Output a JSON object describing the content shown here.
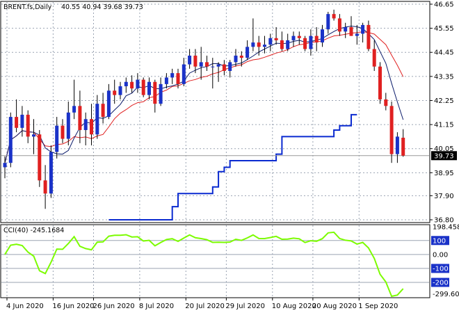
{
  "header": {
    "symbol_label": "BRENT.fs,Daily",
    "ohlc_label": "40.55 40.94 39.68 39.73",
    "cci_label": "CCI(40) -245.1684"
  },
  "chart_data": [
    {
      "type": "candlestick",
      "title": "BRENT.fs,Daily",
      "x_tick_labels": [
        "4 Jun 2020",
        "16 Jun 2020",
        "26 Jun 2020",
        "8 Jul 2020",
        "20 Jul 2020",
        "29 Jul 2020",
        "10 Aug 2020",
        "20 Aug 2020",
        "1 Sep 2020"
      ],
      "x_tick_indices": [
        0,
        8,
        15,
        23,
        31,
        38,
        46,
        53,
        61
      ],
      "y_ticks": [
        "46.65",
        "45.55",
        "44.45",
        "43.35",
        "42.25",
        "41.15",
        "40.05",
        "38.95",
        "37.90",
        "36.80"
      ],
      "ylim": [
        36.8,
        46.65
      ],
      "last_price_label": "39.73",
      "last_price": 39.73,
      "colors": {
        "up": "#1a32c8",
        "down": "#e02020",
        "wick": "#000000",
        "price_line": "#999999"
      },
      "candles": [
        [
          39.2,
          39.7,
          38.7,
          39.4
        ],
        [
          39.4,
          41.7,
          39.2,
          41.5
        ],
        [
          41.5,
          42.3,
          40.8,
          41.0
        ],
        [
          41.0,
          42.0,
          40.6,
          41.6
        ],
        [
          41.6,
          41.8,
          40.3,
          40.6
        ],
        [
          40.6,
          41.4,
          39.8,
          40.7
        ],
        [
          40.7,
          40.9,
          38.3,
          38.6
        ],
        [
          38.6,
          39.3,
          37.3,
          38.0
        ],
        [
          38.0,
          40.2,
          37.8,
          39.9
        ],
        [
          39.9,
          41.5,
          39.6,
          41.1
        ],
        [
          41.1,
          41.4,
          40.3,
          40.5
        ],
        [
          40.5,
          42.2,
          40.2,
          41.7
        ],
        [
          41.7,
          43.2,
          41.4,
          42.0
        ],
        [
          42.0,
          42.7,
          40.3,
          40.9
        ],
        [
          40.9,
          41.7,
          40.2,
          41.4
        ],
        [
          41.4,
          42.1,
          40.2,
          40.7
        ],
        [
          40.7,
          42.5,
          40.5,
          42.1
        ],
        [
          42.1,
          42.6,
          41.2,
          41.5
        ],
        [
          41.5,
          43.0,
          41.4,
          42.7
        ],
        [
          42.7,
          43.2,
          42.1,
          42.5
        ],
        [
          42.5,
          43.1,
          42.3,
          42.9
        ],
        [
          42.9,
          43.3,
          42.6,
          43.1
        ],
        [
          43.1,
          43.4,
          42.6,
          42.8
        ],
        [
          42.8,
          43.5,
          42.6,
          43.2
        ],
        [
          43.2,
          43.3,
          42.4,
          42.5
        ],
        [
          42.5,
          43.3,
          42.3,
          43.1
        ],
        [
          43.1,
          43.2,
          41.7,
          42.1
        ],
        [
          42.1,
          43.3,
          42.0,
          43.0
        ],
        [
          43.0,
          43.5,
          42.8,
          43.3
        ],
        [
          43.3,
          43.7,
          43.0,
          43.5
        ],
        [
          43.5,
          43.7,
          42.8,
          43.0
        ],
        [
          43.0,
          44.2,
          42.9,
          43.9
        ],
        [
          43.9,
          44.6,
          43.7,
          44.3
        ],
        [
          44.3,
          44.6,
          43.5,
          43.8
        ],
        [
          43.8,
          44.7,
          43.2,
          44.0
        ],
        [
          44.0,
          44.3,
          43.6,
          43.8
        ],
        [
          43.8,
          44.2,
          42.8,
          43.8
        ],
        [
          43.8,
          44.0,
          43.1,
          43.9
        ],
        [
          43.9,
          44.1,
          43.4,
          43.6
        ],
        [
          43.6,
          44.1,
          43.3,
          44.0
        ],
        [
          44.0,
          44.6,
          43.8,
          44.3
        ],
        [
          44.3,
          44.5,
          43.8,
          44.2
        ],
        [
          44.2,
          45.0,
          44.1,
          44.7
        ],
        [
          44.7,
          46.0,
          44.5,
          44.9
        ],
        [
          44.9,
          45.2,
          44.3,
          44.7
        ],
        [
          44.7,
          45.2,
          44.4,
          44.8
        ],
        [
          44.8,
          45.3,
          44.5,
          45.1
        ],
        [
          45.1,
          45.6,
          44.8,
          45.0
        ],
        [
          45.0,
          45.4,
          44.5,
          44.6
        ],
        [
          44.6,
          45.3,
          44.5,
          45.0
        ],
        [
          45.0,
          45.4,
          44.7,
          45.2
        ],
        [
          45.2,
          45.4,
          44.8,
          45.1
        ],
        [
          45.1,
          45.2,
          44.5,
          44.6
        ],
        [
          44.6,
          45.5,
          44.3,
          45.2
        ],
        [
          45.2,
          45.6,
          44.5,
          44.9
        ],
        [
          44.9,
          45.7,
          44.7,
          45.5
        ],
        [
          45.5,
          46.3,
          45.3,
          46.2
        ],
        [
          46.2,
          46.4,
          45.9,
          46.0
        ],
        [
          46.0,
          46.2,
          45.2,
          45.4
        ],
        [
          45.4,
          45.8,
          45.1,
          45.6
        ],
        [
          45.6,
          46.1,
          45.2,
          45.2
        ],
        [
          45.2,
          45.7,
          44.8,
          45.3
        ],
        [
          45.3,
          45.8,
          44.9,
          45.7
        ],
        [
          45.7,
          45.9,
          44.5,
          44.6
        ],
        [
          44.6,
          45.0,
          43.6,
          43.8
        ],
        [
          43.8,
          44.0,
          42.1,
          42.3
        ],
        [
          42.3,
          42.6,
          41.8,
          42.0
        ],
        [
          42.0,
          42.2,
          39.4,
          39.8
        ],
        [
          39.8,
          40.8,
          39.4,
          40.6
        ],
        [
          40.55,
          40.94,
          39.68,
          39.73
        ]
      ]
    },
    {
      "type": "line",
      "title": "CCI(40) -245.1684",
      "y_ticks": [
        "198.4581",
        "100",
        "0.00",
        "-100",
        "-200",
        "-299.603"
      ],
      "ylim": [
        -299.603,
        198.4581
      ],
      "levels": [
        100,
        0,
        -100,
        -200
      ],
      "series_color": "#7cfc00",
      "last_value": -245.1684
    }
  ]
}
